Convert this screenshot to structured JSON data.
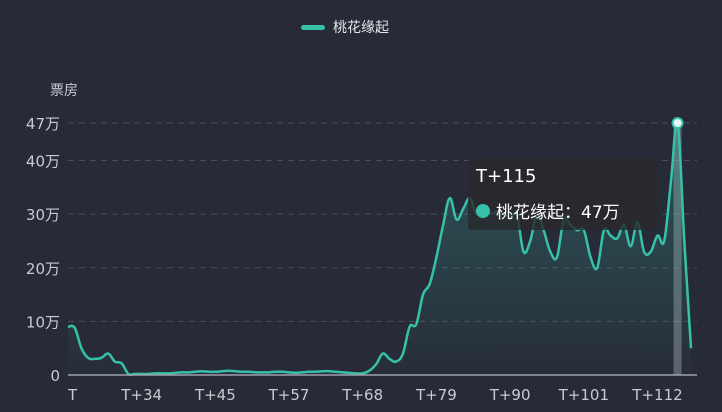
{
  "chart_data": {
    "type": "area",
    "title": "",
    "ylabel": "票房",
    "xlabel": "",
    "legend": {
      "position": "top-center",
      "entries": [
        "桃花缘起"
      ]
    },
    "grid": true,
    "ylim": [
      0,
      47
    ],
    "y_ticks": [
      {
        "value": 0,
        "label": "0"
      },
      {
        "value": 10,
        "label": "10万"
      },
      {
        "value": 20,
        "label": "20万"
      },
      {
        "value": 30,
        "label": "30万"
      },
      {
        "value": 40,
        "label": "40万"
      },
      {
        "value": 47,
        "label": "47万"
      }
    ],
    "x_tick_labels": [
      "T",
      "T+34",
      "T+45",
      "T+57",
      "T+68",
      "T+79",
      "T+90",
      "T+101",
      "T+112"
    ],
    "x_tick_every": 11,
    "unit": "万",
    "color": "#36c2a8",
    "categories": [
      "T",
      "T+24",
      "T+25",
      "T+26",
      "T+27",
      "T+28",
      "T+29",
      "T+30",
      "T+31",
      "T+32",
      "T+33",
      "T+34",
      "T+35",
      "T+36",
      "T+37",
      "T+38",
      "T+39",
      "T+40",
      "T+41",
      "T+42",
      "T+43",
      "T+44",
      "T+45",
      "T+46",
      "T+47",
      "T+48",
      "T+49",
      "T+50",
      "T+51",
      "T+52",
      "T+53",
      "T+54",
      "T+55",
      "T+57",
      "T+58",
      "T+59",
      "T+60",
      "T+61",
      "T+62",
      "T+63",
      "T+64",
      "T+65",
      "T+66",
      "T+67",
      "T+68",
      "T+69",
      "T+70",
      "T+71",
      "T+72",
      "T+73",
      "T+74",
      "T+75",
      "T+76",
      "T+77",
      "T+78",
      "T+79",
      "T+80",
      "T+81",
      "T+82",
      "T+83",
      "T+84",
      "T+85",
      "T+86",
      "T+87",
      "T+88",
      "T+89",
      "T+90",
      "T+91",
      "T+92",
      "T+93",
      "T+94",
      "T+95",
      "T+96",
      "T+97",
      "T+98",
      "T+99",
      "T+100",
      "T+101",
      "T+102",
      "T+103",
      "T+104",
      "T+105",
      "T+106",
      "T+107",
      "T+108",
      "T+109",
      "T+110",
      "T+111",
      "T+112",
      "T+113",
      "T+114",
      "T+115",
      "T+116",
      "T+117"
    ],
    "series": [
      {
        "name": "桃花缘起",
        "values": [
          9,
          8.8,
          5,
          3.2,
          3,
          3.2,
          4,
          2.5,
          2.2,
          0.2,
          0.2,
          0.2,
          0.2,
          0.3,
          0.3,
          0.3,
          0.4,
          0.5,
          0.5,
          0.6,
          0.7,
          0.6,
          0.6,
          0.7,
          0.8,
          0.7,
          0.6,
          0.6,
          0.5,
          0.5,
          0.5,
          0.6,
          0.6,
          0.5,
          0.4,
          0.5,
          0.6,
          0.6,
          0.7,
          0.7,
          0.6,
          0.5,
          0.4,
          0.3,
          0.3,
          0.8,
          2,
          4,
          3,
          2.5,
          4,
          9,
          9.5,
          15,
          17,
          22,
          28,
          33,
          29,
          31,
          33,
          30,
          31,
          30,
          30.5,
          30,
          29.5,
          30,
          23,
          25,
          30,
          27,
          23,
          22,
          29,
          28,
          27,
          27,
          22,
          20,
          27,
          26,
          25.5,
          28,
          24,
          28.5,
          23,
          23,
          26,
          25,
          36,
          47,
          25,
          5
        ]
      }
    ],
    "tooltip": {
      "title": "T+115",
      "series": "桃花缘起",
      "value": "47万",
      "text": "桃花缘起：47万"
    }
  }
}
